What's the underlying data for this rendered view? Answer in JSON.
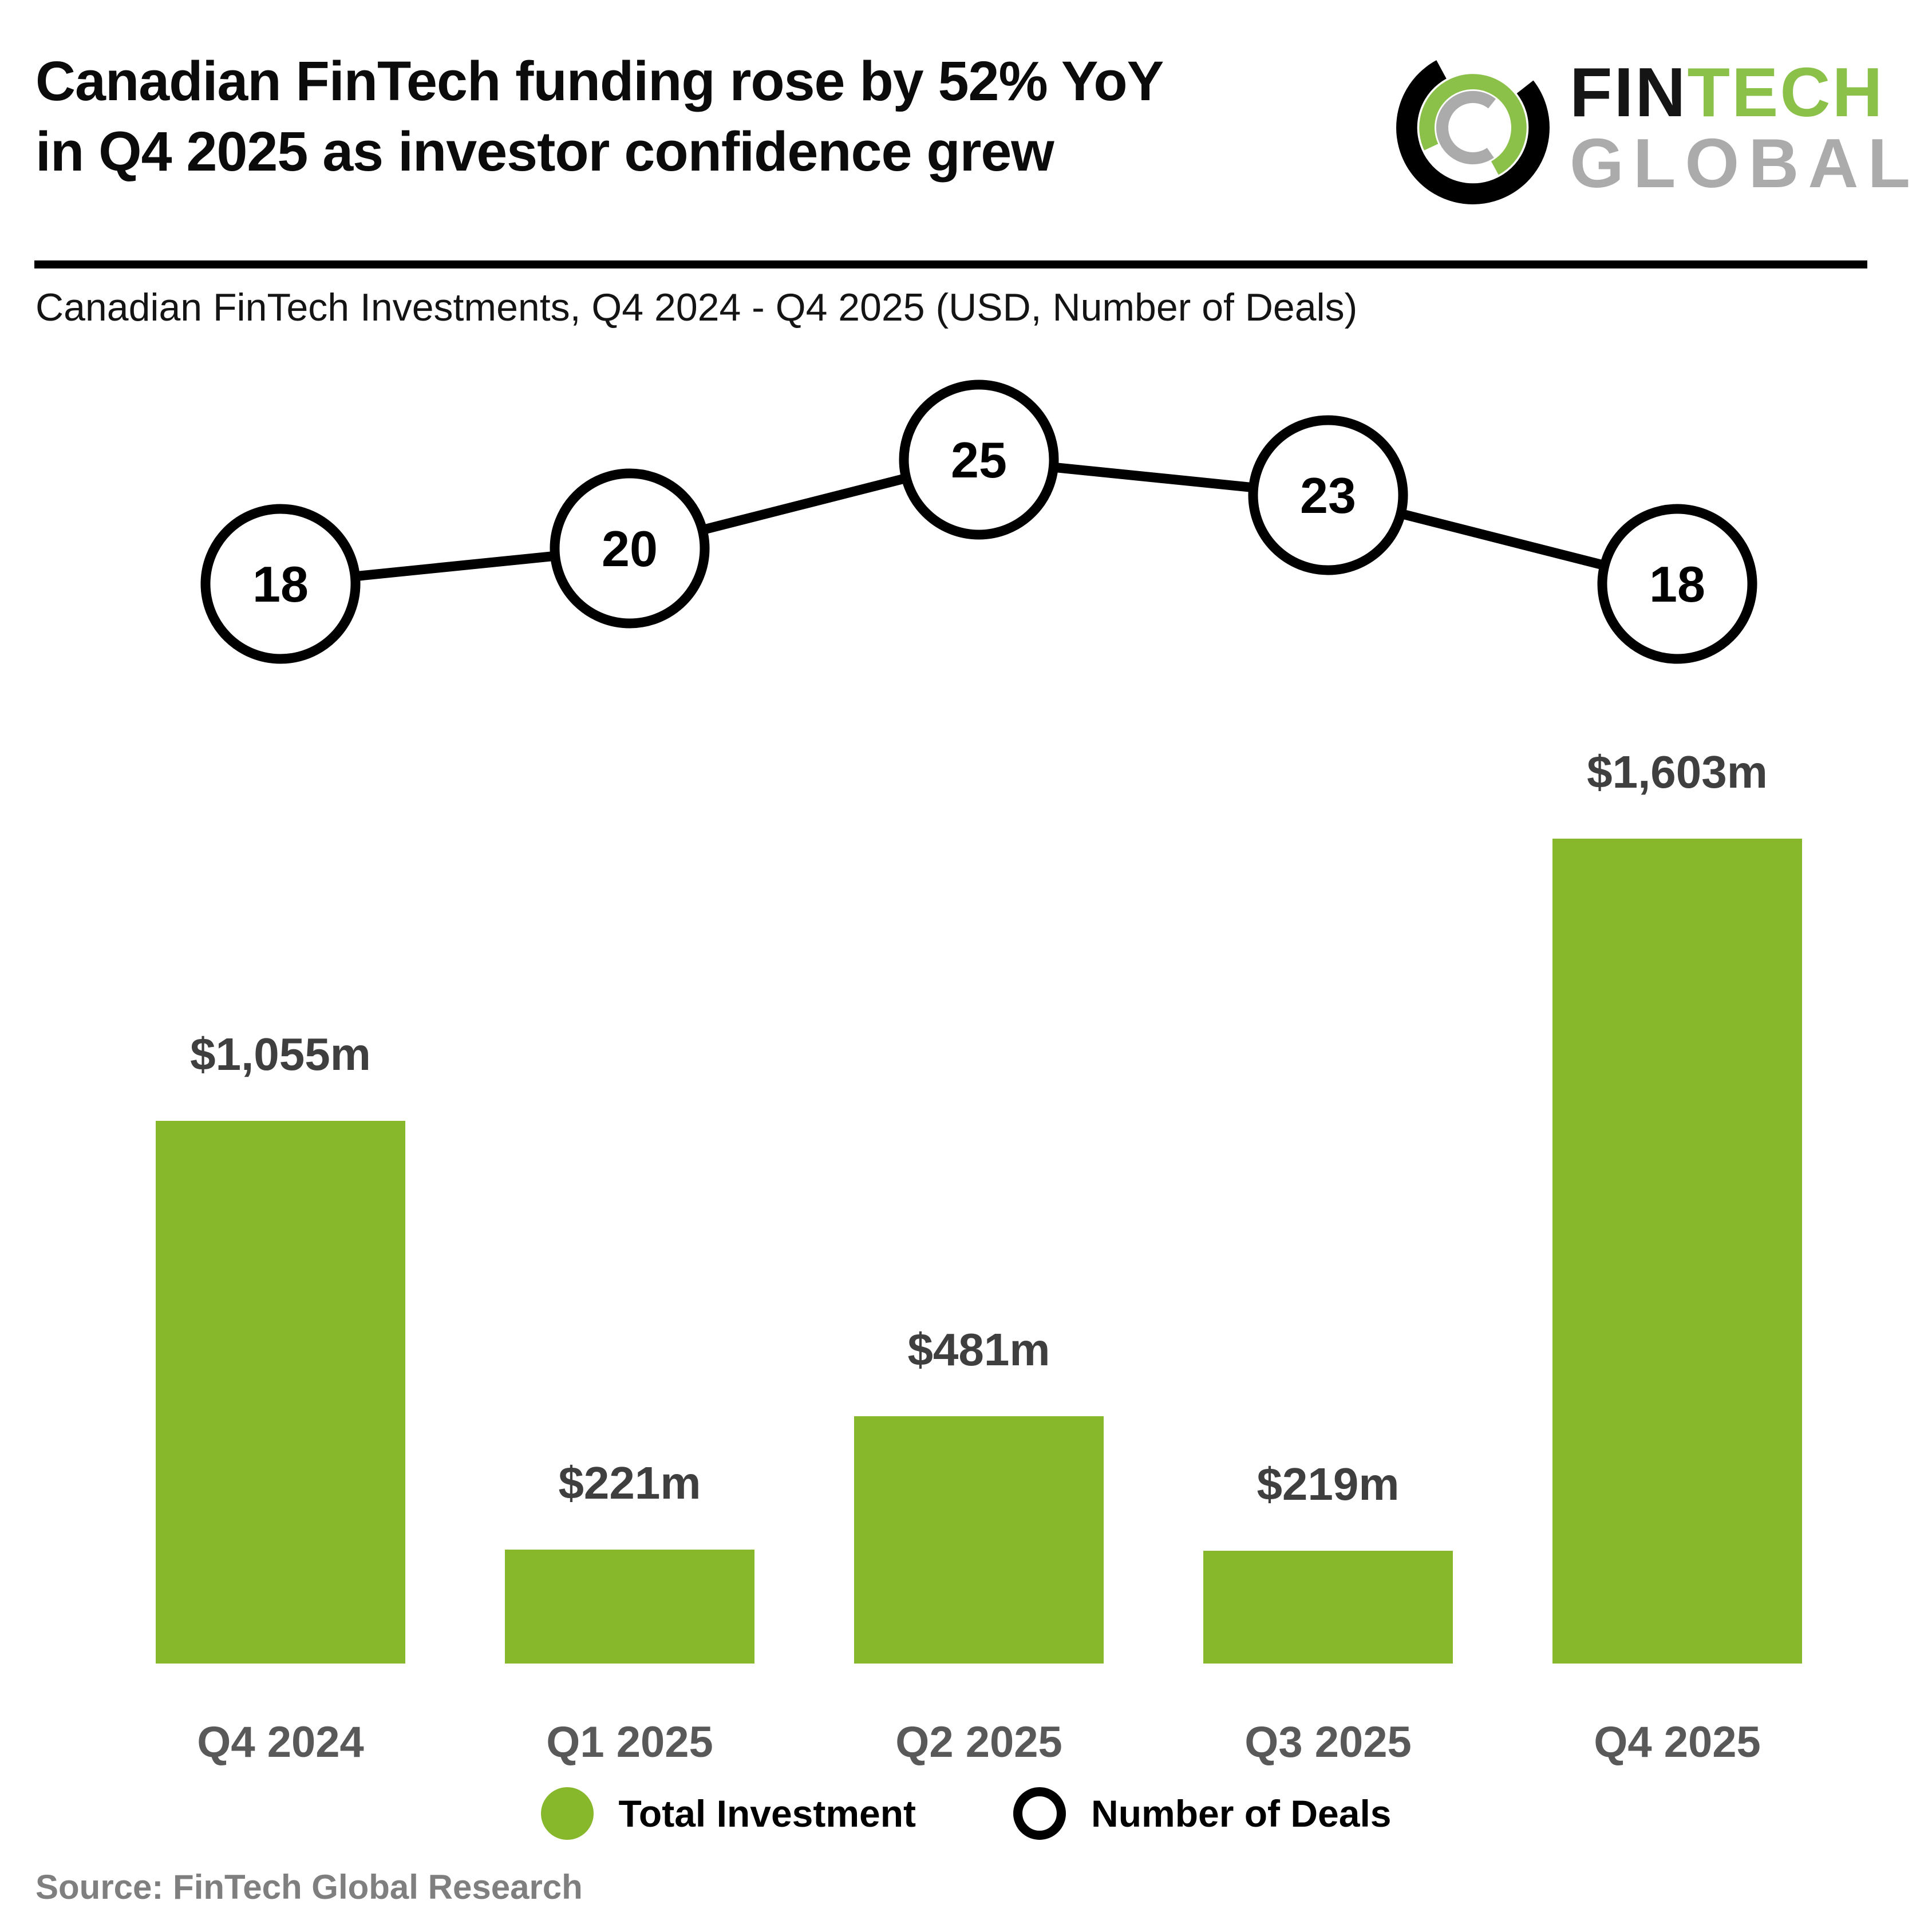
{
  "header": {
    "title_line1": "Canadian FinTech funding rose by 52% YoY",
    "title_line2": "in Q4 2025 as investor confidence grew",
    "logo": {
      "word1": "FIN",
      "word2": "TECH",
      "word3": "GLOBAL"
    }
  },
  "subtitle": "Canadian FinTech Investments, Q4 2024 - Q4 2025 (USD, Number of Deals)",
  "chart_data": {
    "type": "bar",
    "categories": [
      "Q4 2024",
      "Q1 2025",
      "Q2 2025",
      "Q3 2025",
      "Q4 2025"
    ],
    "series": [
      {
        "name": "Total Investment",
        "type": "bar",
        "unit": "USD millions",
        "values": [
          1055,
          221,
          481,
          219,
          1603
        ],
        "labels": [
          "$1,055m",
          "$221m",
          "$481m",
          "$219m",
          "$1,603m"
        ],
        "color": "#87B72B"
      },
      {
        "name": "Number of Deals",
        "type": "line-with-circle-markers",
        "values": [
          18,
          20,
          25,
          23,
          18
        ],
        "marker": "white-circle-black-outline",
        "color": "#000000"
      }
    ],
    "title": "Canadian FinTech Investments, Q4 2024 - Q4 2025 (USD, Number of Deals)",
    "xlabel": "",
    "ylabel": "",
    "grid": false,
    "legend_position": "bottom"
  },
  "legend": {
    "items": [
      {
        "label": "Total Investment",
        "swatch": "filled-green-circle"
      },
      {
        "label": "Number of Deals",
        "swatch": "black-outlined-circle"
      }
    ]
  },
  "source": "Source: FinTech Global Research",
  "colors": {
    "bar_green": "#87B72B",
    "logo_green": "#8BC149",
    "logo_gray": "#ABABAB",
    "bar_value_label": "#3F3F3F",
    "axis_label": "#595959",
    "source_text": "#7F7F7F",
    "line_and_marker": "#000000"
  }
}
